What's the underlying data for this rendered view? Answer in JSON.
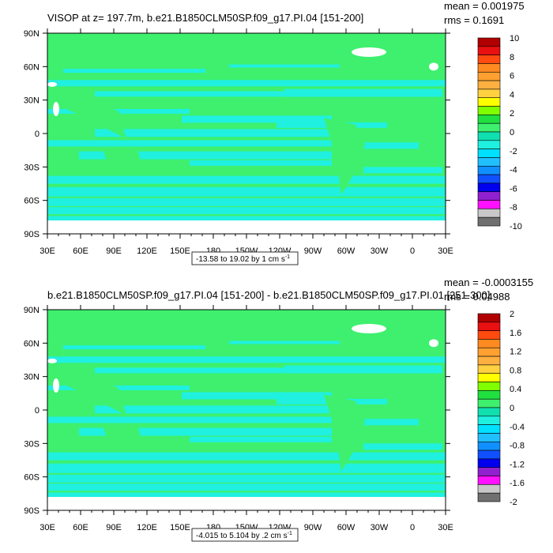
{
  "chart_data": [
    {
      "type": "heatmap",
      "title": "VISOP at z= 197.7m, b.e21.B1850CLM50SP.f09_g17.PI.04 [151-200]",
      "stats": {
        "mean": "mean = 0.001975",
        "rms": "rms = 0.1691"
      },
      "range_label": "-13.58 to 19.02 by 1 cm s",
      "range_unit_exp": "-1",
      "x_ticks": [
        "30E",
        "60E",
        "90E",
        "120E",
        "150E",
        "180",
        "150W",
        "120W",
        "90W",
        "60W",
        "30W",
        "0",
        "30E"
      ],
      "y_ticks": [
        "90N",
        "60N",
        "30N",
        "0",
        "30S",
        "60S",
        "90S"
      ],
      "ylim": [
        -90,
        90
      ],
      "colorbar_labels": [
        "10",
        "8",
        "6",
        "4",
        "2",
        "0",
        "-2",
        "-4",
        "-6",
        "-8",
        "-10"
      ],
      "colorbar_colors": [
        "#b00000",
        "#e81010",
        "#ff4a10",
        "#ff8a20",
        "#ffa030",
        "#ffb040",
        "#ffd040",
        "#ffff00",
        "#80ff00",
        "#20e040",
        "#3ef06e",
        "#10e0b0",
        "#20f0e0",
        "#00e0ff",
        "#20c0ff",
        "#1090ff",
        "#1050ff",
        "#0000ee",
        "#9020d0",
        "#ff10ff",
        "#c8c8c8",
        "#707070"
      ]
    },
    {
      "type": "heatmap",
      "title": "b.e21.B1850CLM50SP.f09_g17.PI.04 [151-200] - b.e21.B1850CLM50SP.f09_g17.PI.01 [251-300]",
      "stats": {
        "mean": "mean = -0.0003155",
        "rms": "rms = 0.04988"
      },
      "range_label": "-4.015 to 5.104 by .2 cm s",
      "range_unit_exp": "-1",
      "x_ticks": [
        "30E",
        "60E",
        "90E",
        "120E",
        "150E",
        "180",
        "150W",
        "120W",
        "90W",
        "60W",
        "30W",
        "0",
        "30E"
      ],
      "y_ticks": [
        "90N",
        "60N",
        "30N",
        "0",
        "30S",
        "60S",
        "90S"
      ],
      "ylim": [
        -90,
        90
      ],
      "colorbar_labels": [
        "2",
        "1.6",
        "1.2",
        "0.8",
        "0.4",
        "0",
        "-0.4",
        "-0.8",
        "-1.2",
        "-1.6",
        "-2"
      ],
      "colorbar_colors": [
        "#b00000",
        "#e81010",
        "#ff4a10",
        "#ff8a20",
        "#ffa030",
        "#ffb040",
        "#ffd040",
        "#ffff00",
        "#80ff00",
        "#20e040",
        "#3ef06e",
        "#10e0b0",
        "#20f0e0",
        "#00e0ff",
        "#20c0ff",
        "#1090ff",
        "#1050ff",
        "#0000ee",
        "#9020d0",
        "#ff10ff",
        "#c8c8c8",
        "#707070"
      ]
    }
  ],
  "colors": {
    "land": "#3ef06e",
    "ocean_band": "#20f0e0",
    "ice": "#ffffff"
  }
}
